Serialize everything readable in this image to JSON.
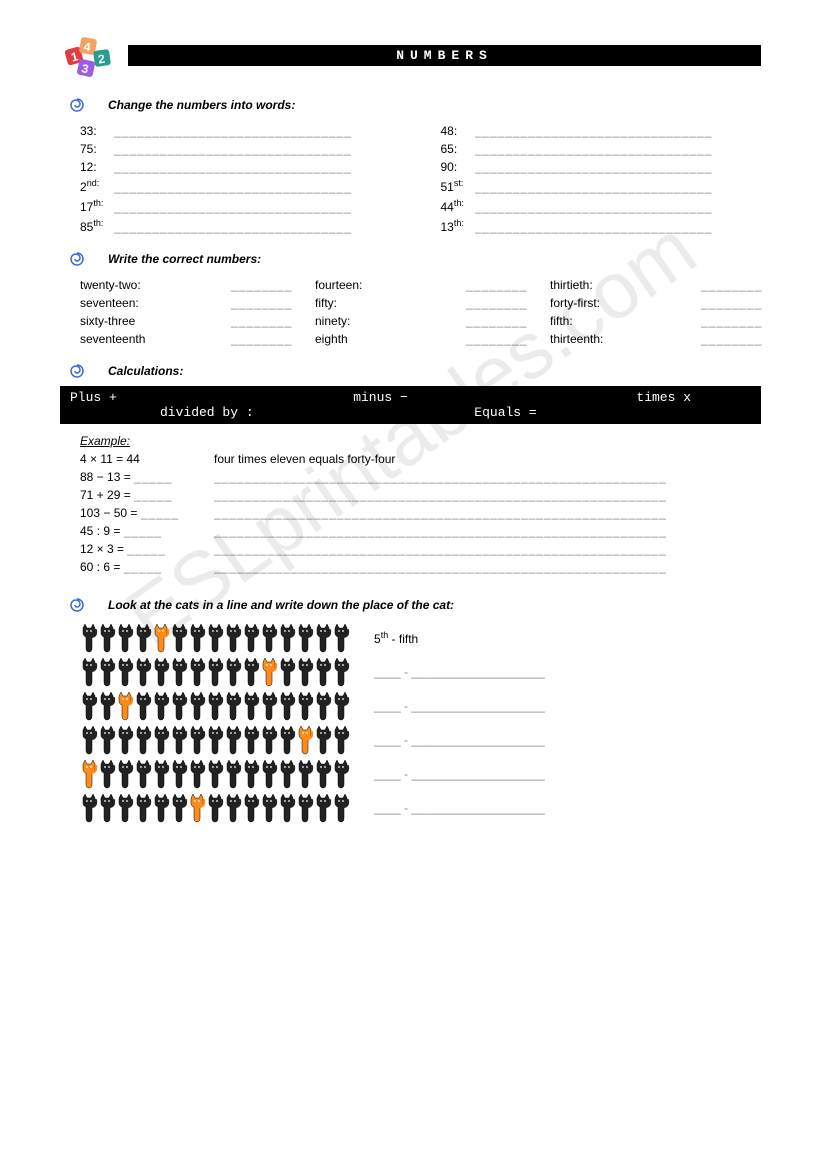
{
  "title": "NUMBERS",
  "watermark": "ESLprintables.com",
  "sections": {
    "s1": {
      "heading": "Change the numbers into words:"
    },
    "s2": {
      "heading": "Write the correct numbers:"
    },
    "s3": {
      "heading": "Calculations:"
    },
    "s4": {
      "heading": "Look at the cats in a line and write down the place of the cat:"
    }
  },
  "numbers_to_words": {
    "left": [
      "33:",
      "75:",
      "12:",
      "2",
      "17",
      "85"
    ],
    "left_ord": [
      "",
      "",
      "",
      "nd:",
      "th:",
      "th:"
    ],
    "right": [
      "48:",
      "65:",
      "90:",
      "51",
      "44",
      "13"
    ],
    "right_ord": [
      "",
      "",
      "",
      "st:",
      "th:",
      "th:"
    ]
  },
  "write_numbers": {
    "col1": [
      "twenty-two:",
      "seventeen:",
      "sixty-three",
      "seventeenth"
    ],
    "col2": [
      "fourteen:",
      "fifty:",
      "ninety:",
      "eighth"
    ],
    "col3": [
      "thirtieth:",
      "forty-first:",
      "fifth:",
      "thirteenth:"
    ]
  },
  "operators": {
    "plus": "Plus +",
    "minus": "minus −",
    "times": "times x",
    "divided": "divided by :",
    "equals": "Equals ="
  },
  "example_label": "Example:",
  "calculations": [
    {
      "eq": "4 × 11 = 44",
      "words": "four times eleven equals forty-four",
      "filled": true
    },
    {
      "eq": "88 − 13 =",
      "words": "",
      "filled": false
    },
    {
      "eq": "71 + 29 =",
      "words": "",
      "filled": false
    },
    {
      "eq": "103 − 50 =",
      "words": "",
      "filled": false
    },
    {
      "eq": "45 : 9 =",
      "words": "",
      "filled": false
    },
    {
      "eq": "12 × 3 =",
      "words": "",
      "filled": false
    },
    {
      "eq": "60 : 6 =",
      "words": "",
      "filled": false
    }
  ],
  "cats": {
    "count": 15,
    "rows": [
      {
        "highlight": 4,
        "answer_num": "5",
        "answer_ord": "th",
        "answer_word": "- fifth",
        "filled": true
      },
      {
        "highlight": 10,
        "filled": false
      },
      {
        "highlight": 2,
        "filled": false
      },
      {
        "highlight": 12,
        "filled": false
      },
      {
        "highlight": 0,
        "filled": false
      },
      {
        "highlight": 6,
        "filled": false
      }
    ],
    "colors": {
      "normal": "#222222",
      "highlight": "#ff8c1a",
      "outline": "#000000"
    }
  },
  "blank_long": "_______________________________",
  "blank_short": "________",
  "blank_med": "_____",
  "blank_words": "___________________________________________________________",
  "blank_catnum": "____",
  "blank_catword": "- ____________________",
  "logo_colors": [
    "#e63946",
    "#f4a261",
    "#2a9d8f",
    "#457b9d",
    "#9b5de5"
  ]
}
